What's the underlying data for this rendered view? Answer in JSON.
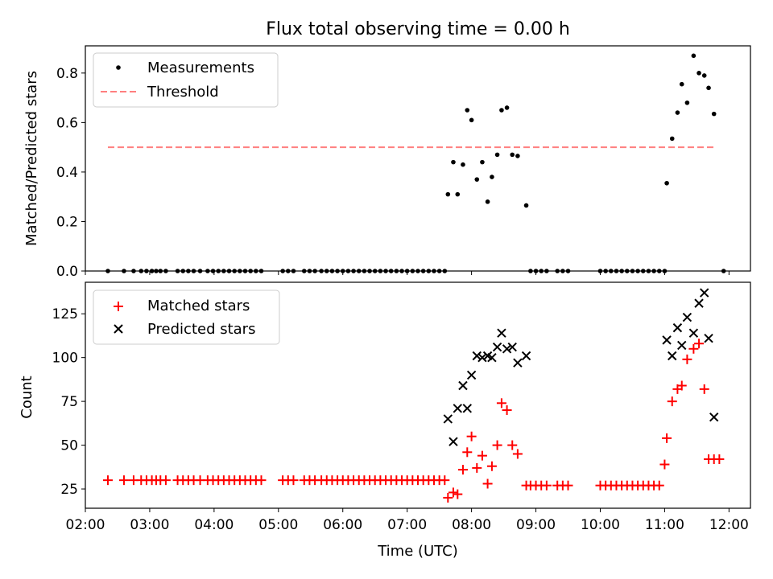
{
  "chart_data": [
    {
      "type": "scatter",
      "title": "Flux total observing time = 0.00 h",
      "xlabel": "",
      "ylabel": "Matched/Predicted stars",
      "xlim": [
        "02:00",
        "12:20"
      ],
      "ylim": [
        0,
        0.91
      ],
      "yticks": [
        "0.0",
        "0.2",
        "0.4",
        "0.6",
        "0.8"
      ],
      "ytick_values": [
        0,
        0.2,
        0.4,
        0.6,
        0.8
      ],
      "legend_position": "upper-left",
      "series": [
        {
          "name": "Measurements",
          "marker": "dot",
          "color": "#000000",
          "x": [
            "02:21",
            "02:36",
            "02:45",
            "02:52",
            "02:57",
            "03:02",
            "03:06",
            "03:10",
            "03:15",
            "03:26",
            "03:31",
            "03:36",
            "03:41",
            "03:47",
            "03:54",
            "03:59",
            "04:04",
            "04:09",
            "04:14",
            "04:19",
            "04:24",
            "04:29",
            "04:34",
            "04:39",
            "04:44",
            "05:04",
            "05:09",
            "05:14",
            "05:24",
            "05:29",
            "05:34",
            "05:40",
            "05:45",
            "05:50",
            "05:55",
            "06:00",
            "06:05",
            "06:10",
            "06:15",
            "06:20",
            "06:25",
            "06:30",
            "06:35",
            "06:40",
            "06:45",
            "06:50",
            "06:55",
            "07:00",
            "07:05",
            "07:10",
            "07:15",
            "07:20",
            "07:25",
            "07:30",
            "07:35",
            "07:38",
            "07:43",
            "07:47",
            "07:52",
            "07:56",
            "08:00",
            "08:05",
            "08:10",
            "08:15",
            "08:19",
            "08:24",
            "08:28",
            "08:33",
            "08:38",
            "08:43",
            "08:51",
            "08:55",
            "09:00",
            "09:05",
            "09:10",
            "09:20",
            "09:25",
            "09:30",
            "10:00",
            "10:05",
            "10:10",
            "10:15",
            "10:20",
            "10:25",
            "10:30",
            "10:35",
            "10:40",
            "10:45",
            "10:50",
            "10:55",
            "11:00",
            "11:02",
            "11:07",
            "11:12",
            "11:16",
            "11:21",
            "11:27",
            "11:32",
            "11:37",
            "11:41",
            "11:46",
            "11:55"
          ],
          "y": [
            0,
            0,
            0,
            0,
            0,
            0,
            0,
            0,
            0,
            0,
            0,
            0,
            0,
            0,
            0,
            0,
            0,
            0,
            0,
            0,
            0,
            0,
            0,
            0,
            0,
            0,
            0,
            0,
            0,
            0,
            0,
            0,
            0,
            0,
            0,
            0,
            0,
            0,
            0,
            0,
            0,
            0,
            0,
            0,
            0,
            0,
            0,
            0,
            0,
            0,
            0,
            0,
            0,
            0,
            0,
            0.31,
            0.44,
            0.31,
            0.43,
            0.65,
            0.61,
            0.37,
            0.44,
            0.28,
            0.38,
            0.47,
            0.65,
            0.66,
            0.47,
            0.465,
            0.265,
            0,
            0,
            0,
            0,
            0,
            0,
            0,
            0,
            0,
            0,
            0,
            0,
            0,
            0,
            0,
            0,
            0,
            0,
            0,
            0,
            0.355,
            0.535,
            0.64,
            0.755,
            0.68,
            0.87,
            0.8,
            0.79,
            0.74,
            0.635,
            0
          ]
        },
        {
          "name": "Threshold",
          "style": "dashed",
          "color": "#ff7f7f",
          "x": [
            "02:21",
            "11:46"
          ],
          "y": [
            0.5,
            0.5
          ]
        }
      ]
    },
    {
      "type": "scatter",
      "title": "",
      "xlabel": "Time (UTC)",
      "ylabel": "Count",
      "xlim": [
        "02:00",
        "12:20"
      ],
      "ylim": [
        14,
        143
      ],
      "yticks": [
        "25",
        "50",
        "75",
        "100",
        "125"
      ],
      "ytick_values": [
        25,
        50,
        75,
        100,
        125
      ],
      "xticks": [
        "02:00",
        "03:00",
        "04:00",
        "05:00",
        "06:00",
        "07:00",
        "08:00",
        "09:00",
        "10:00",
        "11:00",
        "12:00"
      ],
      "legend_position": "upper-left",
      "series": [
        {
          "name": "Matched stars",
          "marker": "plus",
          "color": "#ff0000",
          "x": [
            "02:21",
            "02:36",
            "02:45",
            "02:52",
            "02:57",
            "03:02",
            "03:06",
            "03:10",
            "03:15",
            "03:26",
            "03:31",
            "03:36",
            "03:41",
            "03:47",
            "03:54",
            "03:59",
            "04:04",
            "04:09",
            "04:14",
            "04:19",
            "04:24",
            "04:29",
            "04:34",
            "04:39",
            "04:44",
            "05:04",
            "05:09",
            "05:14",
            "05:24",
            "05:29",
            "05:34",
            "05:40",
            "05:45",
            "05:50",
            "05:55",
            "06:00",
            "06:05",
            "06:10",
            "06:15",
            "06:20",
            "06:25",
            "06:30",
            "06:35",
            "06:40",
            "06:45",
            "06:50",
            "06:55",
            "07:00",
            "07:05",
            "07:10",
            "07:15",
            "07:20",
            "07:25",
            "07:30",
            "07:35",
            "07:38",
            "07:43",
            "07:47",
            "07:52",
            "07:56",
            "08:00",
            "08:05",
            "08:10",
            "08:15",
            "08:19",
            "08:24",
            "08:28",
            "08:33",
            "08:38",
            "08:43",
            "08:51",
            "08:55",
            "09:00",
            "09:05",
            "09:10",
            "09:20",
            "09:25",
            "09:30",
            "10:00",
            "10:05",
            "10:10",
            "10:15",
            "10:20",
            "10:25",
            "10:30",
            "10:35",
            "10:40",
            "10:45",
            "10:50",
            "10:55",
            "11:00",
            "11:02",
            "11:07",
            "11:12",
            "11:16",
            "11:21",
            "11:27",
            "11:32",
            "11:37",
            "11:41",
            "11:46",
            "11:51"
          ],
          "y": [
            30,
            30,
            30,
            30,
            30,
            30,
            30,
            30,
            30,
            30,
            30,
            30,
            30,
            30,
            30,
            30,
            30,
            30,
            30,
            30,
            30,
            30,
            30,
            30,
            30,
            30,
            30,
            30,
            30,
            30,
            30,
            30,
            30,
            30,
            30,
            30,
            30,
            30,
            30,
            30,
            30,
            30,
            30,
            30,
            30,
            30,
            30,
            30,
            30,
            30,
            30,
            30,
            30,
            30,
            30,
            20,
            23,
            22,
            36,
            46,
            55,
            37,
            44,
            28,
            38,
            50,
            74,
            70,
            50,
            45,
            27,
            27,
            27,
            27,
            27,
            27,
            27,
            27,
            27,
            27,
            27,
            27,
            27,
            27,
            27,
            27,
            27,
            27,
            27,
            27,
            39,
            54,
            75,
            82,
            84,
            99,
            105,
            108,
            82,
            42,
            42,
            42
          ]
        },
        {
          "name": "Predicted stars",
          "marker": "x",
          "color": "#000000",
          "x": [
            "07:38",
            "07:43",
            "07:47",
            "07:52",
            "07:56",
            "08:00",
            "08:05",
            "08:10",
            "08:15",
            "08:19",
            "08:24",
            "08:28",
            "08:33",
            "08:38",
            "08:43",
            "08:51",
            "11:02",
            "11:07",
            "11:12",
            "11:16",
            "11:21",
            "11:27",
            "11:32",
            "11:37",
            "11:41",
            "11:46"
          ],
          "y": [
            65,
            52,
            71,
            84,
            71,
            90,
            101,
            100,
            101,
            100,
            106,
            114,
            105,
            106,
            97,
            101,
            110,
            101,
            117,
            107,
            123,
            114,
            131,
            137,
            111,
            66
          ]
        }
      ]
    }
  ]
}
